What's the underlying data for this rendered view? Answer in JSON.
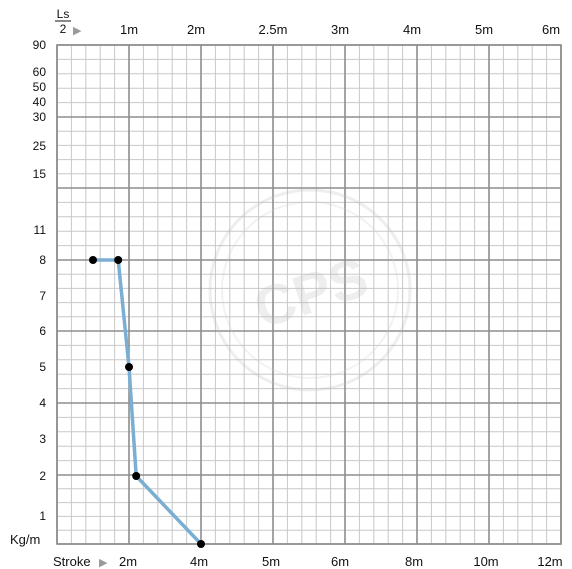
{
  "chart_data": {
    "type": "line",
    "title": "",
    "top_axis": {
      "label_top": "Ls",
      "label_bottom": "2",
      "arrow": "▶",
      "tick_labels": [
        "1m",
        "2m",
        "2.5m",
        "3m",
        "4m",
        "5m",
        "6m"
      ]
    },
    "bottom_axis": {
      "label": "Stroke",
      "arrow": "▶",
      "tick_labels": [
        "2m",
        "4m",
        "5m",
        "6m",
        "8m",
        "10m",
        "12m"
      ]
    },
    "y_axis": {
      "unit_label": "Kg/m",
      "tick_labels": [
        "90",
        "60",
        "50",
        "40",
        "30",
        "25",
        "15",
        "11",
        "8",
        "7",
        "6",
        "5",
        "4",
        "3",
        "2",
        "1"
      ]
    },
    "grid": true,
    "series": [
      {
        "color": "#7aaed3",
        "points": [
          {
            "stroke_m": 1,
            "load_kg_per_m": 8
          },
          {
            "stroke_m": 1.7,
            "load_kg_per_m": 8
          },
          {
            "stroke_m": 2,
            "load_kg_per_m": 5
          },
          {
            "stroke_m": 2.2,
            "load_kg_per_m": 2
          },
          {
            "stroke_m": 4,
            "load_kg_per_m": 0
          }
        ]
      }
    ],
    "watermark": "CPS"
  }
}
